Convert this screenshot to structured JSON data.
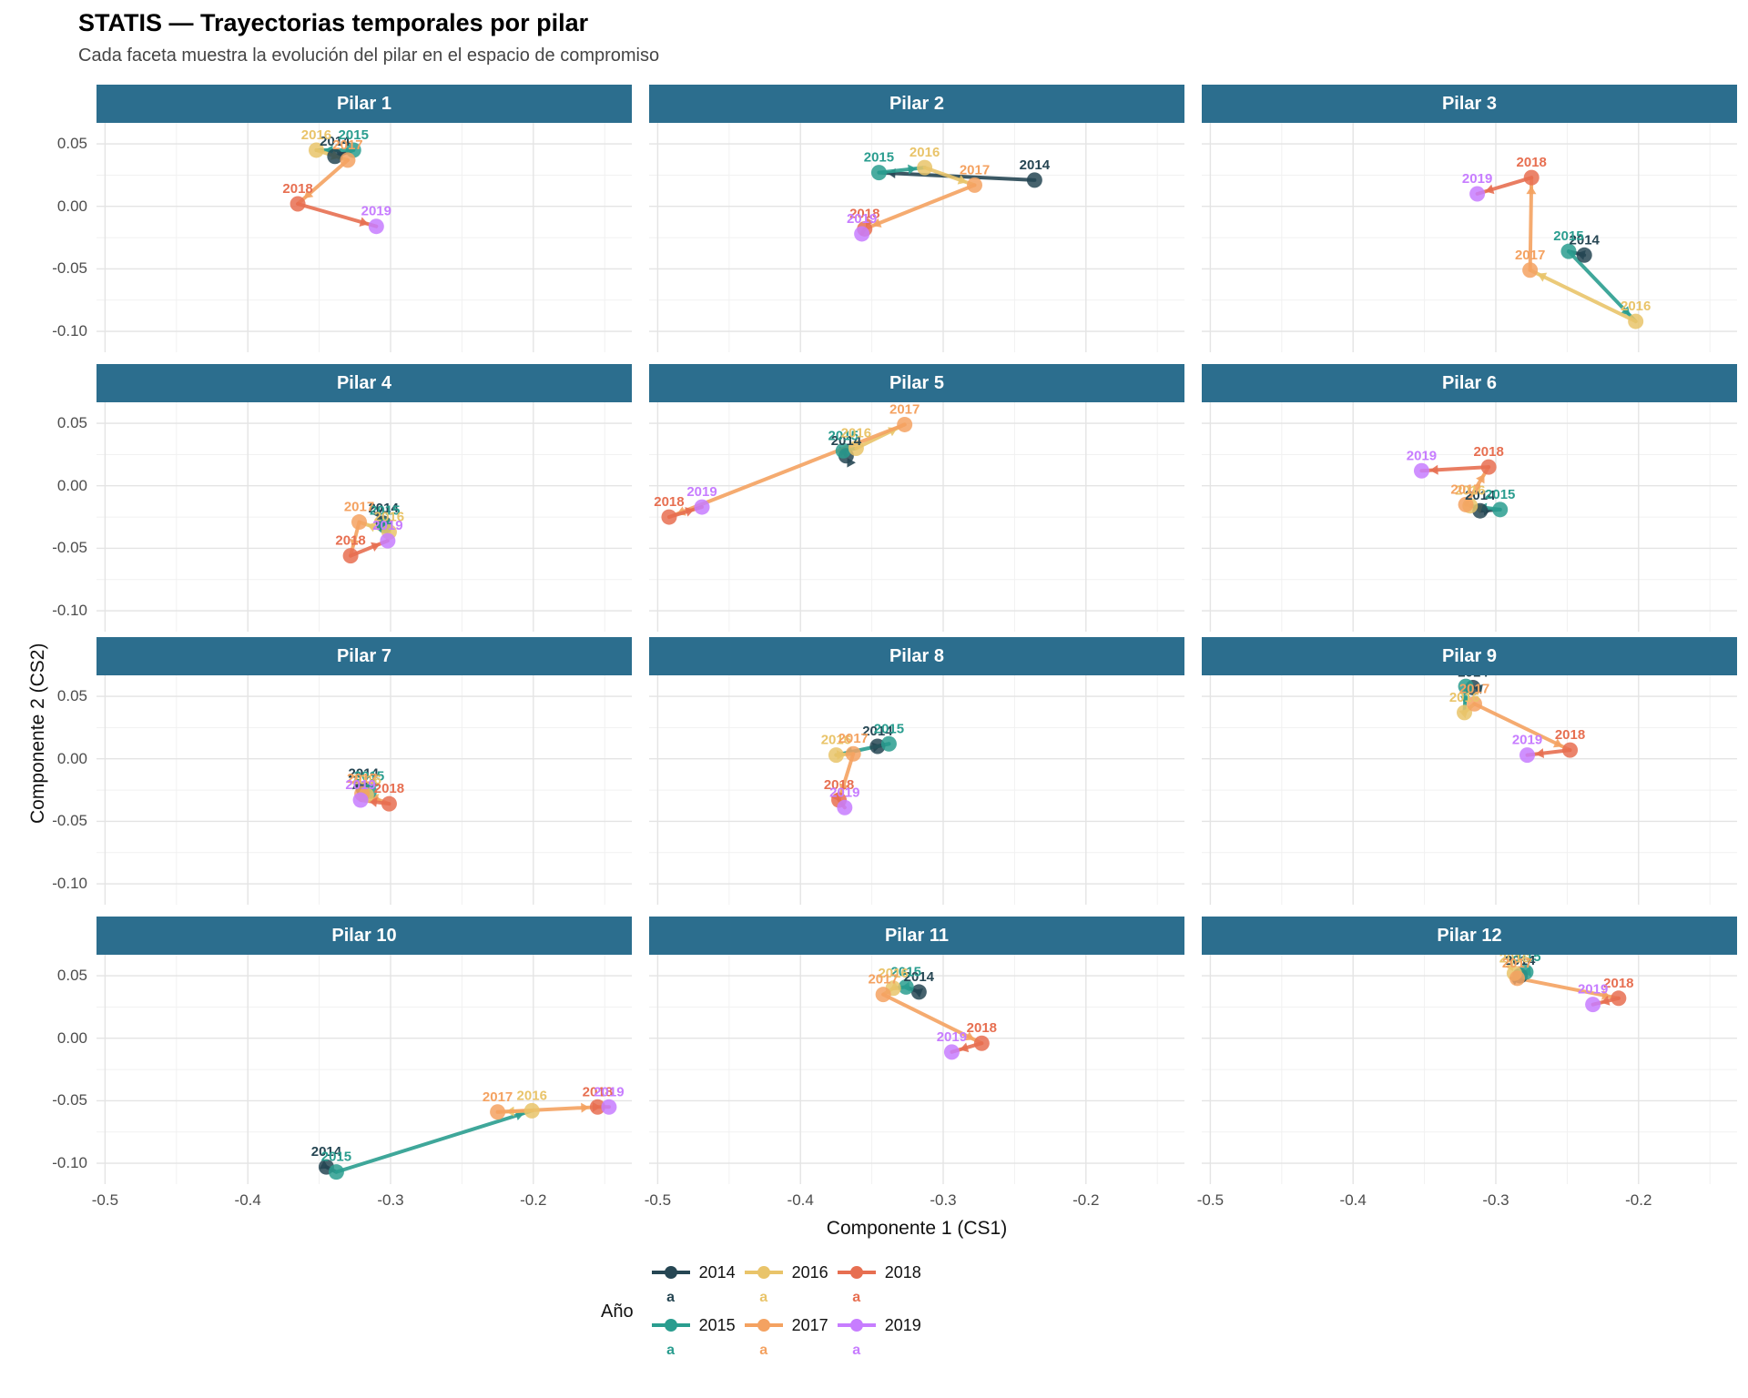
{
  "title": "STATIS — Trayectorias temporales por pilar",
  "subtitle": "Cada faceta muestra la evolución del pilar en el espacio de compromiso",
  "axes": {
    "x_label": "Componente 1 (CS1)",
    "y_label": "Componente 2 (CS2)",
    "x_ticks": [
      {
        "label": "-0.5",
        "value": -0.5
      },
      {
        "label": "-0.4",
        "value": -0.4
      },
      {
        "label": "-0.3",
        "value": -0.3
      },
      {
        "label": "-0.2",
        "value": -0.2
      }
    ],
    "y_ticks": [
      {
        "label": "0.05",
        "value": 0.05
      },
      {
        "label": "0.00",
        "value": 0.0
      },
      {
        "label": "-0.05",
        "value": -0.05
      },
      {
        "label": "-0.10",
        "value": -0.1
      }
    ],
    "x_minor": [
      -0.45,
      -0.35,
      -0.25,
      -0.15
    ],
    "y_minor": [
      0.025,
      -0.025,
      -0.075
    ],
    "x_domain": [
      -0.506,
      -0.131
    ],
    "y_domain": [
      0.0668,
      -0.1167
    ]
  },
  "colors": {
    "strip_bg": "#2c6e8e",
    "strip_text": "#ffffff",
    "grid_major": "#e4e4e4",
    "grid_minor": "#f1f1f1",
    "axis_text": "#4d4d4d",
    "background": "#ffffff"
  },
  "legend": {
    "title": "Año",
    "glyph": "a",
    "columns": [
      [
        "2014",
        "2015"
      ],
      [
        "2016",
        "2017"
      ],
      [
        "2018",
        "2019"
      ]
    ]
  },
  "chart_data": {
    "type": "scatter",
    "subtype": "faceted-temporal-trajectories",
    "years": [
      {
        "year": "2014",
        "color": "#264653"
      },
      {
        "year": "2015",
        "color": "#2a9d8f"
      },
      {
        "year": "2016",
        "color": "#e9c46a"
      },
      {
        "year": "2017",
        "color": "#f4a261"
      },
      {
        "year": "2018",
        "color": "#e76f51"
      },
      {
        "year": "2019",
        "color": "#c77dff"
      }
    ],
    "facets": [
      {
        "name": "Pilar 1",
        "points": [
          {
            "year": "2014",
            "x": -0.339,
            "y": 0.04
          },
          {
            "year": "2015",
            "x": -0.326,
            "y": 0.045
          },
          {
            "year": "2016",
            "x": -0.352,
            "y": 0.045
          },
          {
            "year": "2017",
            "x": -0.33,
            "y": 0.037
          },
          {
            "year": "2018",
            "x": -0.365,
            "y": 0.002
          },
          {
            "year": "2019",
            "x": -0.31,
            "y": -0.016
          }
        ]
      },
      {
        "name": "Pilar 2",
        "points": [
          {
            "year": "2014",
            "x": -0.236,
            "y": 0.021
          },
          {
            "year": "2015",
            "x": -0.345,
            "y": 0.027
          },
          {
            "year": "2016",
            "x": -0.313,
            "y": 0.031
          },
          {
            "year": "2017",
            "x": -0.278,
            "y": 0.017
          },
          {
            "year": "2018",
            "x": -0.355,
            "y": -0.018
          },
          {
            "year": "2019",
            "x": -0.357,
            "y": -0.022
          }
        ]
      },
      {
        "name": "Pilar 3",
        "points": [
          {
            "year": "2014",
            "x": -0.238,
            "y": -0.039
          },
          {
            "year": "2015",
            "x": -0.249,
            "y": -0.036
          },
          {
            "year": "2016",
            "x": -0.202,
            "y": -0.092
          },
          {
            "year": "2017",
            "x": -0.276,
            "y": -0.051
          },
          {
            "year": "2018",
            "x": -0.275,
            "y": 0.023
          },
          {
            "year": "2019",
            "x": -0.313,
            "y": 0.01
          }
        ]
      },
      {
        "name": "Pilar 4",
        "points": [
          {
            "year": "2014",
            "x": -0.305,
            "y": -0.03
          },
          {
            "year": "2015",
            "x": -0.304,
            "y": -0.032
          },
          {
            "year": "2016",
            "x": -0.301,
            "y": -0.037
          },
          {
            "year": "2017",
            "x": -0.322,
            "y": -0.029
          },
          {
            "year": "2018",
            "x": -0.328,
            "y": -0.056
          },
          {
            "year": "2019",
            "x": -0.302,
            "y": -0.044
          }
        ]
      },
      {
        "name": "Pilar 5",
        "points": [
          {
            "year": "2014",
            "x": -0.368,
            "y": 0.024
          },
          {
            "year": "2015",
            "x": -0.37,
            "y": 0.028
          },
          {
            "year": "2016",
            "x": -0.361,
            "y": 0.03
          },
          {
            "year": "2017",
            "x": -0.327,
            "y": 0.049
          },
          {
            "year": "2018",
            "x": -0.492,
            "y": -0.025
          },
          {
            "year": "2019",
            "x": -0.469,
            "y": -0.017
          }
        ]
      },
      {
        "name": "Pilar 6",
        "points": [
          {
            "year": "2014",
            "x": -0.311,
            "y": -0.02
          },
          {
            "year": "2015",
            "x": -0.297,
            "y": -0.019
          },
          {
            "year": "2016",
            "x": -0.318,
            "y": -0.016
          },
          {
            "year": "2017",
            "x": -0.321,
            "y": -0.015
          },
          {
            "year": "2018",
            "x": -0.305,
            "y": 0.015
          },
          {
            "year": "2019",
            "x": -0.352,
            "y": 0.012
          }
        ]
      },
      {
        "name": "Pilar 7",
        "points": [
          {
            "year": "2014",
            "x": -0.319,
            "y": -0.024
          },
          {
            "year": "2015",
            "x": -0.315,
            "y": -0.026
          },
          {
            "year": "2016",
            "x": -0.317,
            "y": -0.029
          },
          {
            "year": "2017",
            "x": -0.32,
            "y": -0.028
          },
          {
            "year": "2018",
            "x": -0.301,
            "y": -0.036
          },
          {
            "year": "2019",
            "x": -0.321,
            "y": -0.033
          }
        ]
      },
      {
        "name": "Pilar 8",
        "points": [
          {
            "year": "2014",
            "x": -0.346,
            "y": 0.01
          },
          {
            "year": "2015",
            "x": -0.338,
            "y": 0.012
          },
          {
            "year": "2016",
            "x": -0.375,
            "y": 0.003
          },
          {
            "year": "2017",
            "x": -0.363,
            "y": 0.004
          },
          {
            "year": "2018",
            "x": -0.373,
            "y": -0.033
          },
          {
            "year": "2019",
            "x": -0.369,
            "y": -0.039
          }
        ]
      },
      {
        "name": "Pilar 9",
        "points": [
          {
            "year": "2014",
            "x": -0.316,
            "y": 0.057
          },
          {
            "year": "2015",
            "x": -0.321,
            "y": 0.058
          },
          {
            "year": "2016",
            "x": -0.322,
            "y": 0.037
          },
          {
            "year": "2017",
            "x": -0.315,
            "y": 0.044
          },
          {
            "year": "2018",
            "x": -0.248,
            "y": 0.007
          },
          {
            "year": "2019",
            "x": -0.278,
            "y": 0.003
          }
        ]
      },
      {
        "name": "Pilar 10",
        "points": [
          {
            "year": "2014",
            "x": -0.345,
            "y": -0.103
          },
          {
            "year": "2015",
            "x": -0.338,
            "y": -0.107
          },
          {
            "year": "2016",
            "x": -0.201,
            "y": -0.058
          },
          {
            "year": "2017",
            "x": -0.225,
            "y": -0.059
          },
          {
            "year": "2018",
            "x": -0.155,
            "y": -0.055
          },
          {
            "year": "2019",
            "x": -0.147,
            "y": -0.055
          }
        ]
      },
      {
        "name": "Pilar 11",
        "points": [
          {
            "year": "2014",
            "x": -0.317,
            "y": 0.037
          },
          {
            "year": "2015",
            "x": -0.326,
            "y": 0.041
          },
          {
            "year": "2016",
            "x": -0.335,
            "y": 0.04
          },
          {
            "year": "2017",
            "x": -0.342,
            "y": 0.035
          },
          {
            "year": "2018",
            "x": -0.273,
            "y": -0.004
          },
          {
            "year": "2019",
            "x": -0.294,
            "y": -0.011
          }
        ]
      },
      {
        "name": "Pilar 12",
        "points": [
          {
            "year": "2014",
            "x": -0.283,
            "y": 0.05
          },
          {
            "year": "2015",
            "x": -0.279,
            "y": 0.053
          },
          {
            "year": "2016",
            "x": -0.287,
            "y": 0.052
          },
          {
            "year": "2017",
            "x": -0.285,
            "y": 0.048
          },
          {
            "year": "2018",
            "x": -0.214,
            "y": 0.032
          },
          {
            "year": "2019",
            "x": -0.232,
            "y": 0.027
          }
        ]
      }
    ]
  }
}
